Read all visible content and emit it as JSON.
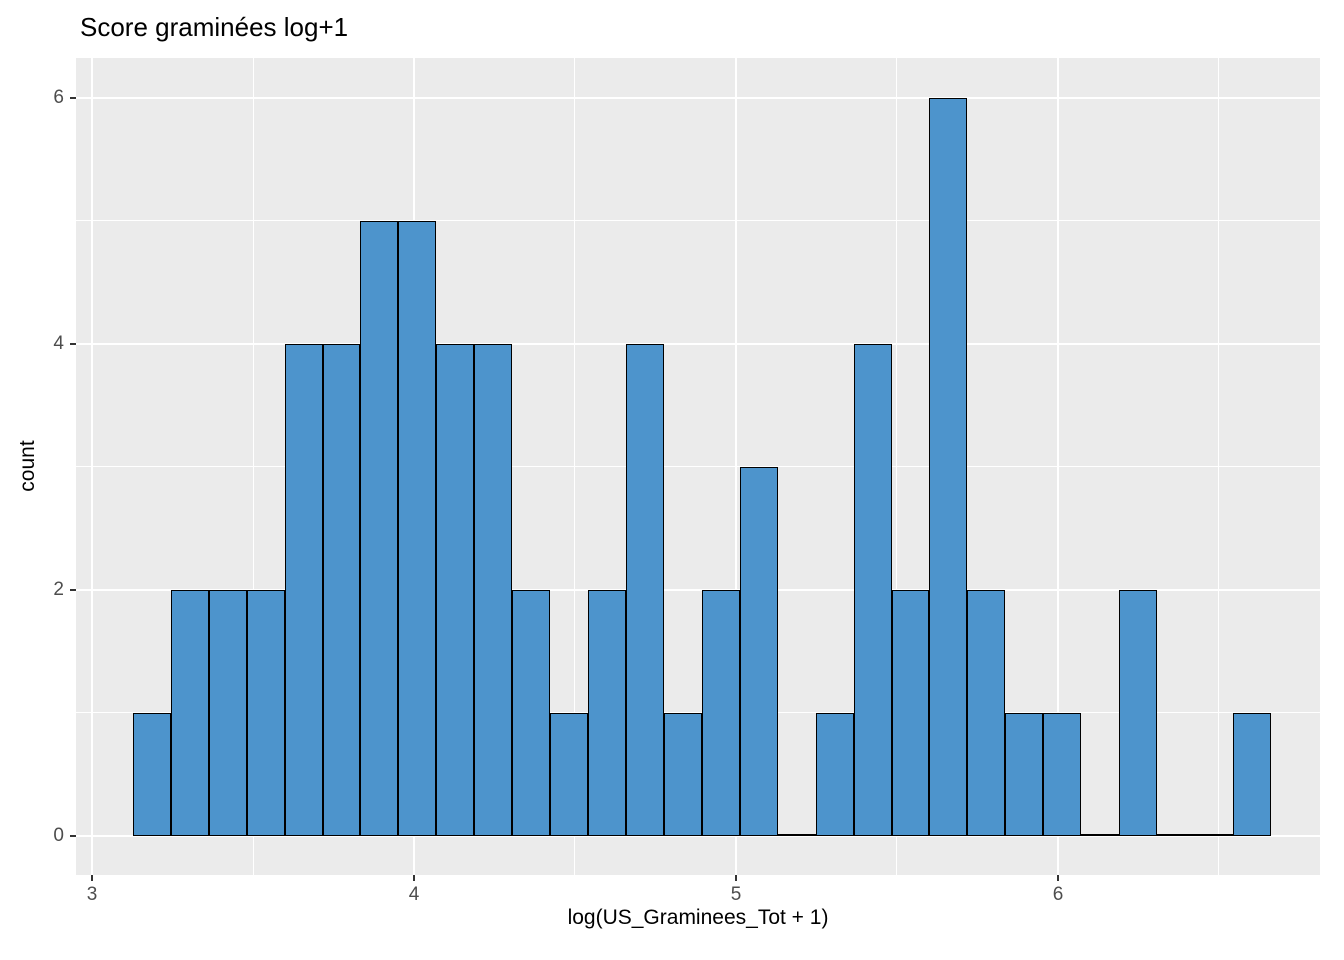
{
  "title": "Score graminées log+1",
  "chart_data": {
    "type": "bar",
    "subtype": "histogram",
    "title": "Score graminées log+1",
    "xlabel": "log(US_Graminees_Tot + 1)",
    "ylabel": "count",
    "bin_start": 3.127,
    "bin_width": 0.1178,
    "counts": [
      1,
      2,
      2,
      2,
      4,
      4,
      5,
      5,
      4,
      4,
      2,
      1,
      2,
      4,
      1,
      2,
      3,
      0,
      1,
      4,
      2,
      6,
      2,
      1,
      1,
      0,
      2,
      0,
      0,
      1
    ],
    "n_bins": 30,
    "total_observations": 68,
    "xlim": [
      2.9503,
      6.8137
    ],
    "ylim": [
      -0.3171,
      6.3252
    ],
    "x_ticks": [
      3,
      4,
      5,
      6
    ],
    "y_ticks": [
      0,
      2,
      4,
      6
    ],
    "x_minor": [
      3.5,
      4.5,
      5.5,
      6.5
    ],
    "y_minor": [
      1,
      3,
      5
    ],
    "grid": true,
    "legend": "none",
    "colors": {
      "bar_fill": "#4D94CC",
      "bar_stroke": "#000000",
      "panel_bg": "#EBEBEB",
      "grid": "#FFFFFF",
      "tick_label": "#4D4D4D",
      "axis_title": "#000000",
      "title": "#000000"
    }
  }
}
